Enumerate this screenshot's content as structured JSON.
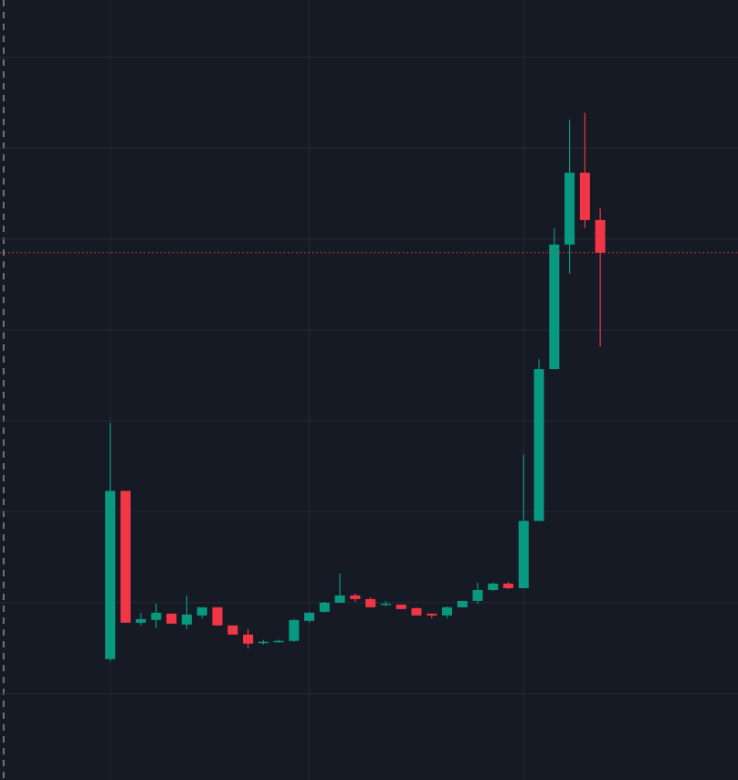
{
  "chart_data": {
    "type": "candlestick",
    "x": [
      0,
      1,
      2,
      3,
      4,
      5,
      6,
      7,
      8,
      9,
      10,
      11,
      12,
      13,
      14,
      15,
      16,
      17,
      18,
      19,
      20,
      21,
      22,
      23,
      24,
      25,
      26,
      27,
      28,
      29,
      30,
      31,
      32
    ],
    "open": [
      1.38,
      3.23,
      1.78,
      1.81,
      1.88,
      1.76,
      1.86,
      1.95,
      1.75,
      1.65,
      1.56,
      1.57,
      1.58,
      1.8,
      1.9,
      2.0,
      2.08,
      2.04,
      1.98,
      1.98,
      1.94,
      1.88,
      1.86,
      1.95,
      2.02,
      2.14,
      2.21,
      2.16,
      2.9,
      4.57,
      5.94,
      6.73,
      6.21
    ],
    "high": [
      3.98,
      3.23,
      1.89,
      1.99,
      1.88,
      2.08,
      1.95,
      1.95,
      1.75,
      1.71,
      1.59,
      1.59,
      1.82,
      1.9,
      2.01,
      2.32,
      2.1,
      2.06,
      2.02,
      1.98,
      1.95,
      1.88,
      1.96,
      2.02,
      2.22,
      2.22,
      2.23,
      3.63,
      4.68,
      6.12,
      7.31,
      7.39,
      6.34
    ],
    "low": [
      1.36,
      1.78,
      1.75,
      1.72,
      1.77,
      1.71,
      1.83,
      1.75,
      1.65,
      1.5,
      1.54,
      1.56,
      1.57,
      1.78,
      1.89,
      2.0,
      2.01,
      1.95,
      1.96,
      1.93,
      1.86,
      1.83,
      1.83,
      1.95,
      1.99,
      2.13,
      2.15,
      2.16,
      2.9,
      4.57,
      5.62,
      6.12,
      4.82
    ],
    "close": [
      3.23,
      1.78,
      1.82,
      1.89,
      1.77,
      1.87,
      1.95,
      1.75,
      1.65,
      1.55,
      1.57,
      1.58,
      1.81,
      1.89,
      2.0,
      2.08,
      2.04,
      1.95,
      1.99,
      1.93,
      1.86,
      1.86,
      1.95,
      2.02,
      2.14,
      2.21,
      2.16,
      2.9,
      4.57,
      5.94,
      6.73,
      6.21,
      5.85
    ],
    "up_color": "#089981",
    "down_color": "#f23645",
    "price_line": 5.85,
    "xlim": [
      -7.2,
      41
    ],
    "xticks": [
      0,
      13,
      27
    ],
    "ylim": [
      0.05,
      8.63
    ],
    "yticks": [
      1,
      2,
      3,
      4,
      5,
      6,
      7,
      8
    ],
    "grid": true
  }
}
